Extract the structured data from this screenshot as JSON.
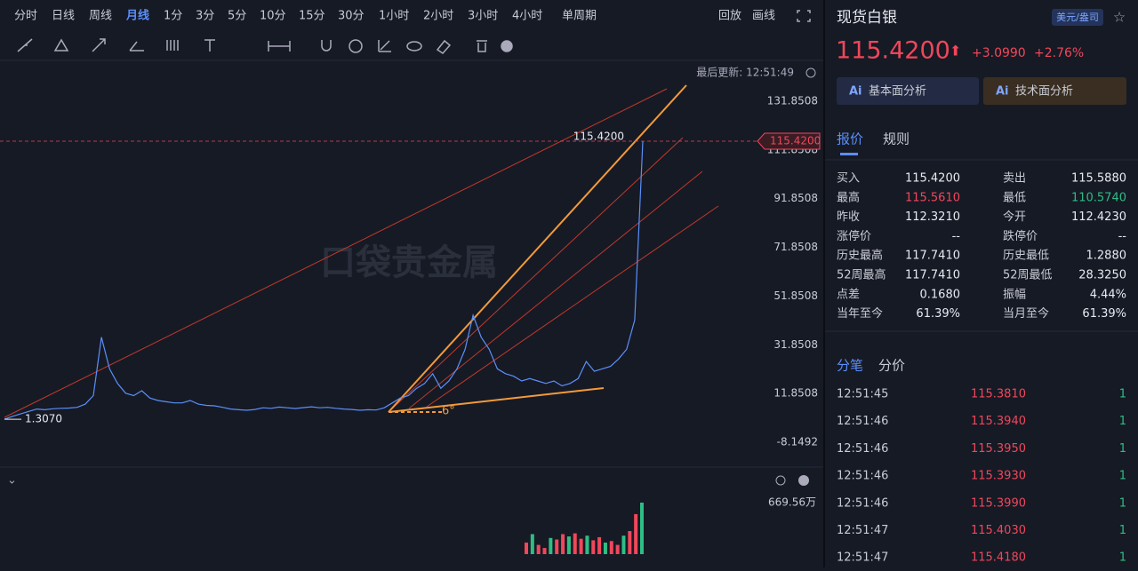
{
  "toolbar": {
    "periods": [
      "分时",
      "日线",
      "周线",
      "月线",
      "1分",
      "3分",
      "5分",
      "10分",
      "15分",
      "30分",
      "1小时",
      "2小时",
      "3小时",
      "4小时",
      "单周期"
    ],
    "active_index": 3,
    "replay": "回放",
    "draw": "画线"
  },
  "last_update": "最后更新: 12:51:49",
  "watermark": "口袋贵金属",
  "chart_data": {
    "type": "line",
    "color": "#5b8ff9",
    "values": [
      1.307,
      2.5,
      3.5,
      4.5,
      5.5,
      5.2,
      5.6,
      5.8,
      5.9,
      6.2,
      7.5,
      11,
      35,
      22,
      16,
      12,
      11,
      13,
      10,
      9,
      8.5,
      8,
      8,
      9,
      7.5,
      7,
      6.8,
      6.2,
      5.5,
      5.2,
      5,
      5.3,
      6,
      5.8,
      6.3,
      6,
      5.7,
      6.1,
      6.4,
      6,
      6.2,
      5.8,
      5.5,
      5.3,
      5,
      5.2,
      5.1,
      6,
      8,
      10,
      11,
      14,
      16,
      20,
      14,
      17,
      22,
      30,
      44,
      35,
      30,
      22,
      20,
      19,
      17,
      18,
      17,
      16,
      17,
      15,
      16,
      18,
      25,
      21,
      22,
      23,
      26,
      30,
      42,
      115.42
    ],
    "ylim": [
      -16.1492,
      147.8508
    ],
    "yticks": [
      131.8508,
      111.8508,
      91.8508,
      71.8508,
      51.8508,
      31.8508,
      11.8508,
      -8.1492
    ],
    "last_price": {
      "value": 115.42,
      "label": "115.4200"
    },
    "start_price": {
      "value": 1.307,
      "label": "1.3070"
    },
    "angle_note": "6°"
  },
  "volume": {
    "max": {
      "value": 669.56,
      "label": "669.56万"
    },
    "values": [
      150,
      260,
      120,
      80,
      210,
      190,
      260,
      230,
      270,
      200,
      240,
      180,
      220,
      150,
      170,
      120,
      240,
      300,
      520,
      669.56
    ]
  },
  "panel": {
    "title": "现货白银",
    "unit": "美元/盎司",
    "price": "115.4200",
    "change": "+3.0990",
    "change_pct": "+2.76%",
    "buttons": [
      "基本面分析",
      "技术面分析"
    ],
    "tabs": [
      "报价",
      "规则"
    ],
    "quote": [
      {
        "label": "买入",
        "value": "115.4200"
      },
      {
        "label": "卖出",
        "value": "115.5880"
      },
      {
        "label": "最高",
        "value": "115.5610",
        "color": "#f0475a"
      },
      {
        "label": "最低",
        "value": "110.5740",
        "color": "#2ebd85"
      },
      {
        "label": "昨收",
        "value": "112.3210"
      },
      {
        "label": "今开",
        "value": "112.4230"
      },
      {
        "label": "涨停价",
        "value": "--"
      },
      {
        "label": "跌停价",
        "value": "--"
      },
      {
        "label": "历史最高",
        "value": "117.7410"
      },
      {
        "label": "历史最低",
        "value": "1.2880"
      },
      {
        "label": "52周最高",
        "value": "117.7410"
      },
      {
        "label": "52周最低",
        "value": "28.3250"
      },
      {
        "label": "点差",
        "value": "0.1680"
      },
      {
        "label": "振幅",
        "value": "4.44%"
      },
      {
        "label": "当年至今",
        "value": "61.39%"
      },
      {
        "label": "当月至今",
        "value": "61.39%"
      }
    ],
    "trade_tabs": [
      "分笔",
      "分价"
    ],
    "trades": [
      [
        "12:51:45",
        "115.3810",
        "1"
      ],
      [
        "12:51:46",
        "115.3940",
        "1"
      ],
      [
        "12:51:46",
        "115.3950",
        "1"
      ],
      [
        "12:51:46",
        "115.3930",
        "1"
      ],
      [
        "12:51:46",
        "115.3990",
        "1"
      ],
      [
        "12:51:47",
        "115.4030",
        "1"
      ],
      [
        "12:51:47",
        "115.4180",
        "1"
      ]
    ]
  }
}
